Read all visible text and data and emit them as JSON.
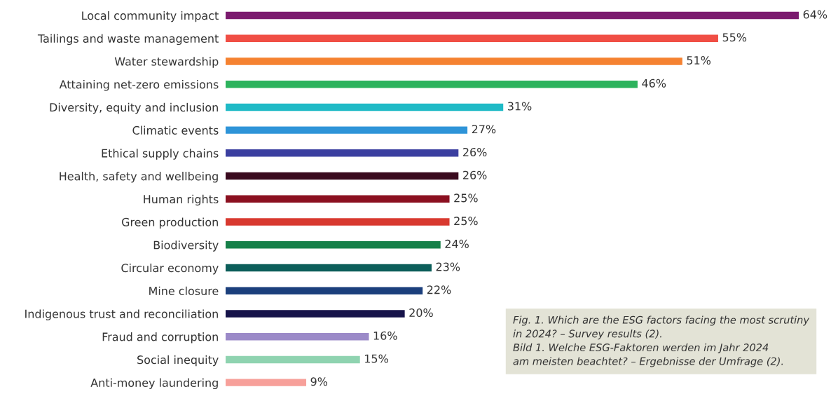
{
  "chart_data": {
    "type": "bar",
    "orientation": "horizontal",
    "categories": [
      "Local community impact",
      "Tailings and waste management",
      "Water stewardship",
      "Attaining net-zero emissions",
      "Diversity, equity and inclusion",
      "Climatic events",
      "Ethical supply chains",
      "Health, safety and wellbeing",
      "Human rights",
      "Green production",
      "Biodiversity",
      "Circular economy",
      "Mine closure",
      "Indigenous trust and reconciliation",
      "Fraud and corruption",
      "Social inequity",
      "Anti-money laundering"
    ],
    "values": [
      64,
      55,
      51,
      46,
      31,
      27,
      26,
      26,
      25,
      25,
      24,
      23,
      22,
      20,
      16,
      15,
      9
    ],
    "value_labels": [
      "64%",
      "55%",
      "51%",
      "46%",
      "31%",
      "27%",
      "26%",
      "26%",
      "25%",
      "25%",
      "24%",
      "23%",
      "22%",
      "20%",
      "16%",
      "15%",
      "9%"
    ],
    "colors": [
      "#7b1a6e",
      "#f04e45",
      "#f58231",
      "#2db35d",
      "#1fbac6",
      "#2e94d8",
      "#3b3fa0",
      "#3a0a1e",
      "#8b1020",
      "#d8392f",
      "#168049",
      "#0c5e5a",
      "#1b3f7c",
      "#16134a",
      "#9b8ac8",
      "#8fd3b0",
      "#f7a09a"
    ],
    "xlim": [
      0,
      64
    ],
    "tick_labels": "y",
    "grid": false,
    "legend": false,
    "annotations": [
      "Fig. 1. Which are the ESG factors facing the most scrutiny\nin 2024? – Survey results (2).\nBild 1. Welche ESG-Faktoren werden im Jahr 2024\nam meisten beachtet? – Ergebnisse der Umfrage (2)."
    ]
  }
}
